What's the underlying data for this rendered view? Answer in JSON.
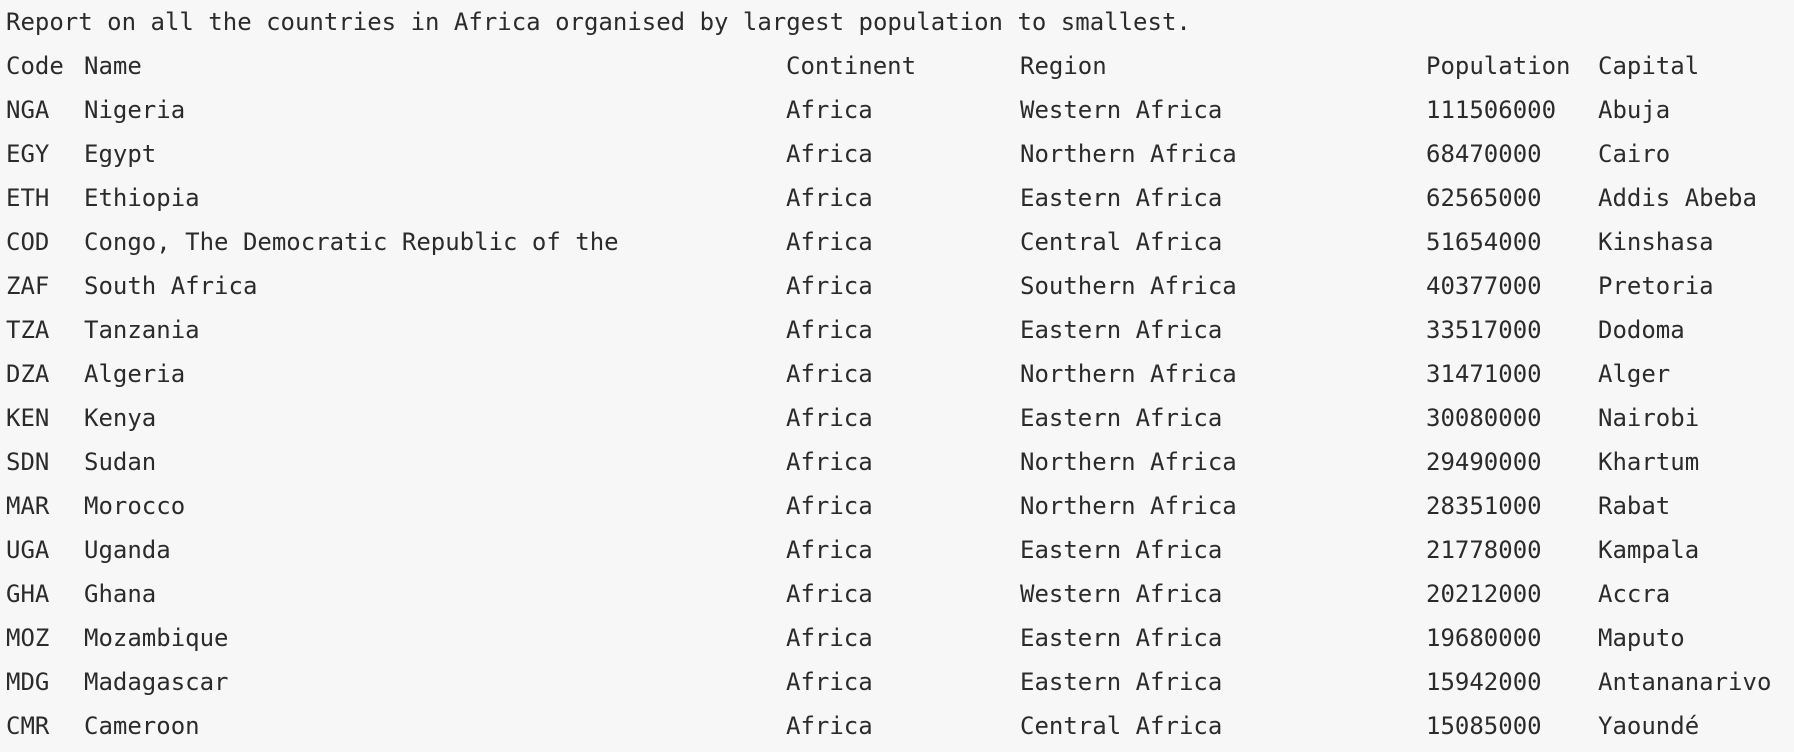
{
  "report": {
    "title": "Report on all the countries in Africa organised by largest population to smallest."
  },
  "table": {
    "headers": {
      "code": "Code",
      "name": "Name",
      "continent": "Continent",
      "region": "Region",
      "population": "Population",
      "capital": "Capital"
    },
    "rows": [
      {
        "code": "NGA",
        "name": "Nigeria",
        "continent": "Africa",
        "region": "Western Africa",
        "population": "111506000",
        "capital": "Abuja"
      },
      {
        "code": "EGY",
        "name": "Egypt",
        "continent": "Africa",
        "region": "Northern Africa",
        "population": "68470000",
        "capital": "Cairo"
      },
      {
        "code": "ETH",
        "name": "Ethiopia",
        "continent": "Africa",
        "region": "Eastern Africa",
        "population": "62565000",
        "capital": "Addis Abeba"
      },
      {
        "code": "COD",
        "name": "Congo, The Democratic Republic of the",
        "continent": "Africa",
        "region": "Central Africa",
        "population": "51654000",
        "capital": "Kinshasa"
      },
      {
        "code": "ZAF",
        "name": "South Africa",
        "continent": "Africa",
        "region": "Southern Africa",
        "population": "40377000",
        "capital": "Pretoria"
      },
      {
        "code": "TZA",
        "name": "Tanzania",
        "continent": "Africa",
        "region": "Eastern Africa",
        "population": "33517000",
        "capital": "Dodoma"
      },
      {
        "code": "DZA",
        "name": "Algeria",
        "continent": "Africa",
        "region": "Northern Africa",
        "population": "31471000",
        "capital": "Alger"
      },
      {
        "code": "KEN",
        "name": "Kenya",
        "continent": "Africa",
        "region": "Eastern Africa",
        "population": "30080000",
        "capital": "Nairobi"
      },
      {
        "code": "SDN",
        "name": "Sudan",
        "continent": "Africa",
        "region": "Northern Africa",
        "population": "29490000",
        "capital": "Khartum"
      },
      {
        "code": "MAR",
        "name": "Morocco",
        "continent": "Africa",
        "region": "Northern Africa",
        "population": "28351000",
        "capital": "Rabat"
      },
      {
        "code": "UGA",
        "name": "Uganda",
        "continent": "Africa",
        "region": "Eastern Africa",
        "population": "21778000",
        "capital": "Kampala"
      },
      {
        "code": "GHA",
        "name": "Ghana",
        "continent": "Africa",
        "region": "Western Africa",
        "population": "20212000",
        "capital": "Accra"
      },
      {
        "code": "MOZ",
        "name": "Mozambique",
        "continent": "Africa",
        "region": "Eastern Africa",
        "population": "19680000",
        "capital": "Maputo"
      },
      {
        "code": "MDG",
        "name": "Madagascar",
        "continent": "Africa",
        "region": "Eastern Africa",
        "population": "15942000",
        "capital": "Antananarivo"
      },
      {
        "code": "CMR",
        "name": "Cameroon",
        "continent": "Africa",
        "region": "Central Africa",
        "population": "15085000",
        "capital": "Yaoundé"
      }
    ]
  }
}
